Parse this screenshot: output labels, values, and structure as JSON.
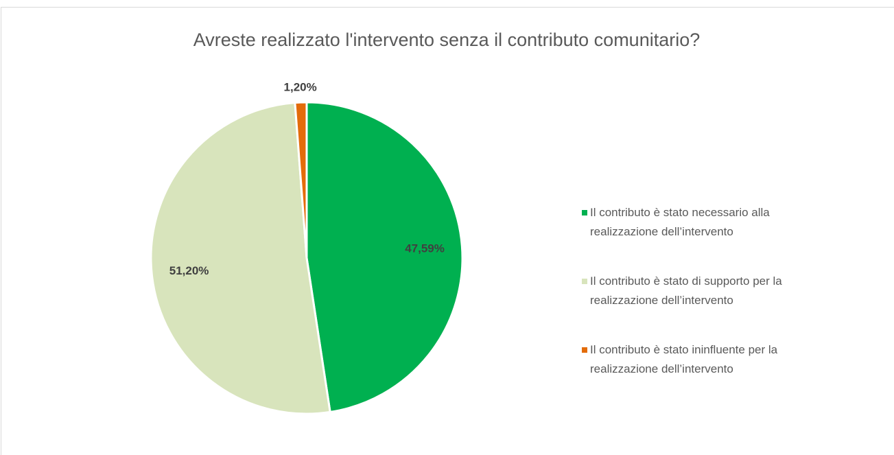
{
  "chart_data": {
    "type": "pie",
    "title": "Avreste realizzato l'intervento senza il contributo comunitario?",
    "categories": [
      "Il contributo è stato necessario alla realizzazione dell’intervento",
      "Il contributo è stato di supporto per la realizzazione dell’intervento",
      "Il contributo è stato ininfluente per la realizzazione dell’intervento"
    ],
    "values": [
      47.59,
      51.2,
      1.2
    ],
    "value_labels": [
      "47,59%",
      "51,20%",
      "1,20%"
    ],
    "colors": [
      "#00b050",
      "#d8e4bc",
      "#e36c0a"
    ],
    "legend": "right"
  }
}
